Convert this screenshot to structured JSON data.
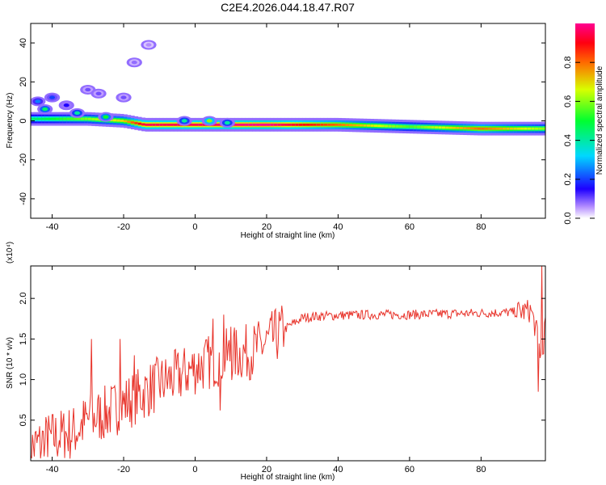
{
  "title": "C2E4.2026.044.18.47.R07",
  "chart_data": [
    {
      "type": "heatmap",
      "title": "C2E4.2026.044.18.47.R07",
      "xlabel": "Height of straight line (km)",
      "ylabel": "Frequency (Hz)",
      "xlim": [
        -46,
        98
      ],
      "ylim": [
        -50,
        50
      ],
      "xticks": [
        -40,
        -20,
        0,
        20,
        40,
        60,
        80
      ],
      "yticks": [
        -40,
        -20,
        0,
        20,
        40
      ],
      "colorbar": {
        "label": "Normalized spectral amplitude",
        "range": [
          0.0,
          1.0
        ],
        "ticks": [
          0.0,
          0.2,
          0.4,
          0.6,
          0.8
        ],
        "tick_labels": [
          "0.0",
          "0.2",
          "0.4",
          "0.6",
          "0.8"
        ]
      },
      "ridge": [
        {
          "x": -46,
          "freq": 1,
          "amp": 0.45
        },
        {
          "x": -40,
          "freq": 1,
          "amp": 0.5
        },
        {
          "x": -30,
          "freq": 1,
          "amp": 0.6
        },
        {
          "x": -20,
          "freq": 0,
          "amp": 0.7
        },
        {
          "x": -14,
          "freq": -2,
          "amp": 0.95
        },
        {
          "x": 0,
          "freq": -2,
          "amp": 0.95
        },
        {
          "x": 20,
          "freq": -2,
          "amp": 1.0
        },
        {
          "x": 40,
          "freq": -2,
          "amp": 0.8
        },
        {
          "x": 60,
          "freq": -3,
          "amp": 0.55
        },
        {
          "x": 80,
          "freq": -4,
          "amp": 0.8
        },
        {
          "x": 98,
          "freq": -4,
          "amp": 0.6
        }
      ],
      "blobs": [
        {
          "x": -44,
          "freq": 10,
          "amp": 0.25
        },
        {
          "x": -42,
          "freq": 6,
          "amp": 0.45
        },
        {
          "x": -40,
          "freq": 12,
          "amp": 0.2
        },
        {
          "x": -36,
          "freq": 8,
          "amp": 0.15
        },
        {
          "x": -33,
          "freq": 4,
          "amp": 0.4
        },
        {
          "x": -30,
          "freq": 16,
          "amp": 0.1
        },
        {
          "x": -27,
          "freq": 14,
          "amp": 0.1
        },
        {
          "x": -25,
          "freq": 2,
          "amp": 0.5
        },
        {
          "x": -20,
          "freq": 12,
          "amp": 0.1
        },
        {
          "x": -17,
          "freq": 30,
          "amp": 0.08
        },
        {
          "x": -13,
          "freq": 39,
          "amp": 0.06
        },
        {
          "x": -3,
          "freq": 0,
          "amp": 0.4
        },
        {
          "x": 4,
          "freq": 0,
          "amp": 0.6
        },
        {
          "x": 9,
          "freq": -1,
          "amp": 0.4
        }
      ]
    },
    {
      "type": "line",
      "xlabel": "Height of straight line (km)",
      "ylabel": "SNR (10 * v/v)",
      "y_multiplier": "(x10⁴)",
      "xlim": [
        -46,
        98
      ],
      "ylim": [
        0.0,
        2.4
      ],
      "xticks": [
        -40,
        -20,
        0,
        20,
        40,
        60,
        80
      ],
      "yticks": [
        0.5,
        1.0,
        1.5,
        2.0
      ],
      "ytick_labels": [
        "0.5",
        "1.0",
        "1.5",
        "2.0"
      ],
      "series": [
        {
          "name": "SNR",
          "color": "#e8332a",
          "trend_x": [
            -46,
            -40,
            -34,
            -30,
            -24,
            -20,
            -14,
            -10,
            -4,
            0,
            6,
            10,
            16,
            20,
            26,
            30,
            34,
            40,
            50,
            60,
            70,
            80,
            90,
            94,
            96,
            97,
            98
          ],
          "trend_y": [
            0.15,
            0.28,
            0.35,
            0.5,
            0.6,
            0.7,
            0.85,
            0.95,
            1.05,
            1.15,
            1.25,
            1.3,
            1.35,
            1.45,
            1.65,
            1.76,
            1.78,
            1.79,
            1.8,
            1.8,
            1.81,
            1.82,
            1.83,
            1.85,
            1.5,
            1.2,
            1.72
          ],
          "spikes": [
            {
              "x": -29,
              "y": 1.5
            },
            {
              "x": -21,
              "y": 1.5
            },
            {
              "x": -17,
              "y": 1.3
            },
            {
              "x": 5,
              "y": 1.75
            },
            {
              "x": 8,
              "y": 1.8
            },
            {
              "x": 7,
              "y": 0.62
            },
            {
              "x": 10,
              "y": 1.65
            },
            {
              "x": 96,
              "y": 0.85
            },
            {
              "x": 97,
              "y": 2.4
            }
          ]
        }
      ]
    }
  ]
}
